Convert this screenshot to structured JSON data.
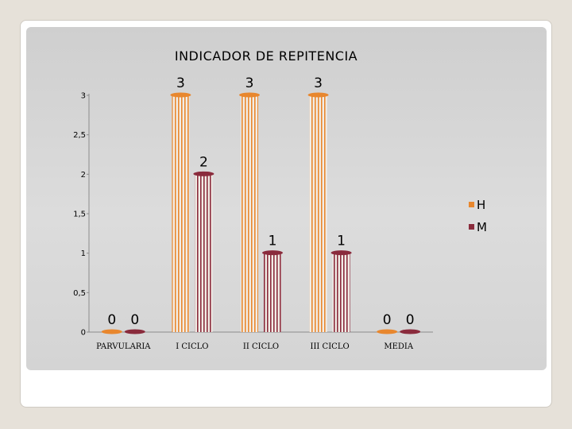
{
  "chart_data": {
    "type": "bar",
    "title": "INDICADOR DE REPITENCIA",
    "xlabel": "",
    "ylabel": "",
    "categories": [
      "PARVULARIA",
      "I CICLO",
      "II CICLO",
      "III CICLO",
      "MEDIA"
    ],
    "series": [
      {
        "name": "H",
        "values": [
          0,
          3,
          3,
          3,
          0
        ],
        "color": "#e8872e"
      },
      {
        "name": "M",
        "values": [
          0,
          2,
          1,
          1,
          0
        ],
        "color": "#8a2b3c"
      }
    ],
    "ylim": [
      0,
      3
    ],
    "yticks": [
      "0",
      "0,5",
      "1",
      "1,5",
      "2",
      "2,5",
      "3"
    ],
    "data_labels": true,
    "grid": false,
    "legend_position": "right"
  }
}
